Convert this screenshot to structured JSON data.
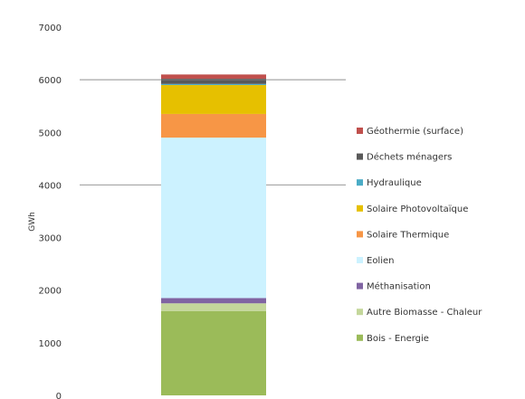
{
  "chart_data": {
    "type": "bar",
    "stacked": true,
    "categories": [
      ""
    ],
    "ylabel": "GWh",
    "ylim": [
      0,
      7000
    ],
    "yticks": [
      "0",
      "1000",
      "2000",
      "3000",
      "4000",
      "5000",
      "6000",
      "7000"
    ],
    "ytick_values": [
      0,
      1000,
      2000,
      3000,
      4000,
      5000,
      6000,
      7000
    ],
    "gridlines": [
      4000,
      6000
    ],
    "legend_position": "right",
    "series": [
      {
        "name": "Bois - Energie",
        "values": [
          1600
        ],
        "color": "#9bbb59"
      },
      {
        "name": "Autre Biomasse - Chaleur",
        "values": [
          150
        ],
        "color": "#c4d79b"
      },
      {
        "name": "Méthanisation",
        "values": [
          100
        ],
        "color": "#8064a2"
      },
      {
        "name": "Eolien",
        "values": [
          3050
        ],
        "color": "#ccf2ff"
      },
      {
        "name": "Solaire Thermique",
        "values": [
          450
        ],
        "color": "#f79646"
      },
      {
        "name": "Solaire Photovoltaïque",
        "values": [
          550
        ],
        "color": "#e6c000"
      },
      {
        "name": "Hydraulique",
        "values": [
          20
        ],
        "color": "#4bacc6"
      },
      {
        "name": "Déchets ménagers",
        "values": [
          100
        ],
        "color": "#595959"
      },
      {
        "name": "Géothermie (surface)",
        "values": [
          80
        ],
        "color": "#c0504d"
      }
    ]
  }
}
